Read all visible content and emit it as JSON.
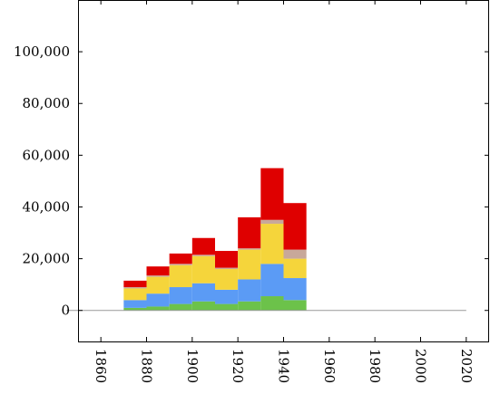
{
  "chart_data": {
    "type": "bar",
    "stacked": true,
    "x_tick_labels": [
      "1860",
      "1880",
      "1900",
      "1920",
      "1940",
      "1960",
      "1980",
      "2000",
      "2020"
    ],
    "y_tick_labels": [
      "0",
      "20,000",
      "40,000",
      "60,000",
      "80,000",
      "100,000"
    ],
    "xlim": [
      1850,
      2030
    ],
    "ylim": [
      -12000,
      120000
    ],
    "x_ticks": [
      1860,
      1880,
      1900,
      1920,
      1940,
      1960,
      1980,
      2000,
      2020
    ],
    "y_ticks": [
      0,
      20000,
      40000,
      60000,
      80000,
      100000
    ],
    "bin_width": 10,
    "bins": [
      1870,
      1880,
      1890,
      1900,
      1910,
      1920,
      1930,
      1940
    ],
    "series": [
      {
        "color": "#6cc24a",
        "values": [
          1000,
          1500,
          2500,
          3500,
          2500,
          3500,
          5500,
          4000
        ]
      },
      {
        "color": "#5b9bf5",
        "values": [
          3000,
          5000,
          6500,
          7000,
          5500,
          8500,
          12500,
          8500
        ]
      },
      {
        "color": "#f5d53b",
        "values": [
          4500,
          6500,
          8500,
          10500,
          8000,
          11500,
          15500,
          7500
        ]
      },
      {
        "color": "#c8a89a",
        "values": [
          500,
          500,
          500,
          500,
          500,
          500,
          1500,
          3500
        ]
      },
      {
        "color": "#df0000",
        "values": [
          2500,
          3500,
          4000,
          6500,
          6500,
          12000,
          20000,
          18000
        ]
      }
    ],
    "zero_line": {
      "from": 1845,
      "to": 2020,
      "color": "#999999"
    },
    "grid": false
  }
}
